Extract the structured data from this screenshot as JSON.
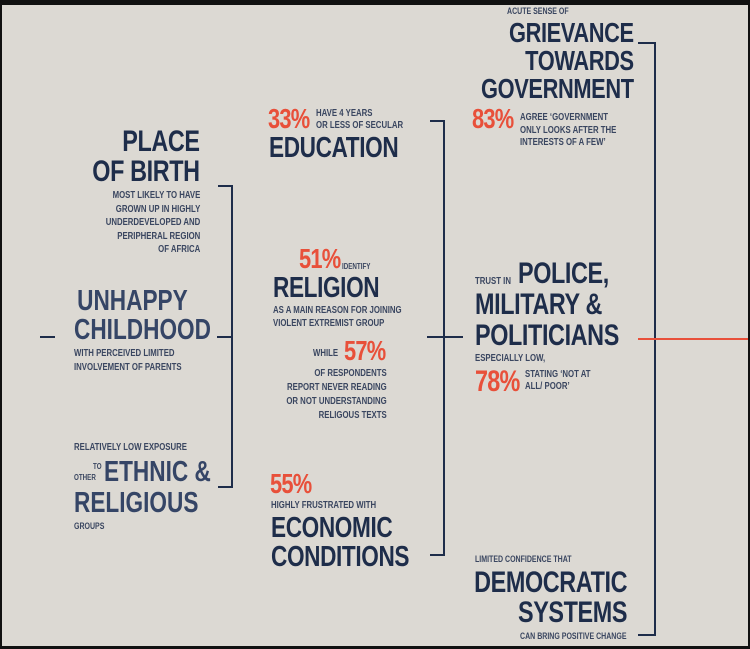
{
  "colors": {
    "background": "#dcd9d3",
    "navy": "#1e2d4a",
    "accent": "#e8503a"
  },
  "place_of_birth": {
    "title": [
      "PLACE",
      "OF BIRTH"
    ],
    "desc": [
      "MOST LIKELY TO HAVE",
      "GROWN UP IN HIGHLY",
      "UNDERDEVELOPED AND",
      "PERIPHERAL REGION",
      "OF AFRICA"
    ]
  },
  "unhappy_childhood": {
    "title": [
      "UNHAPPY",
      "CHILDHOOD"
    ],
    "desc": [
      "WITH PERCEIVED LIMITED",
      "INVOLVEMENT OF PARENTS"
    ]
  },
  "ethnic": {
    "intro": "RELATIVELY LOW EXPOSURE",
    "to": "TO",
    "other": "OTHER",
    "title": [
      "ETHNIC &",
      "RELIGIOUS"
    ],
    "suffix": "GROUPS"
  },
  "education": {
    "percent": "33%",
    "desc": [
      "HAVE 4 YEARS",
      "OR LESS OF SECULAR"
    ],
    "title": "EDUCATION"
  },
  "religion": {
    "percent": "51%",
    "identify": "IDENTIFY",
    "title": "RELIGION",
    "desc": [
      "AS A MAIN REASON FOR JOINING",
      "VIOLENT EXTREMIST GROUP"
    ],
    "while": "WHILE",
    "percent2": "57%",
    "desc2": [
      "OF RESPONDENTS",
      "REPORT NEVER READING",
      "OR NOT UNDERSTANDING",
      "RELIGOUS TEXTS"
    ]
  },
  "economic": {
    "percent": "55%",
    "desc": "HIGHLY FRUSTRATED WITH",
    "title": [
      "ECONOMIC",
      "CONDITIONS"
    ]
  },
  "grievance": {
    "intro": "ACUTE SENSE OF",
    "title": [
      "GRIEVANCE",
      "TOWARDS",
      "GOVERNMENT"
    ],
    "percent": "83%",
    "desc": [
      "AGREE ‘GOVERNMENT",
      "ONLY LOOKS AFTER THE",
      "INTERESTS OF A FEW’"
    ]
  },
  "trust": {
    "intro": "TRUST IN",
    "title": [
      "POLICE,",
      "MILITARY &",
      "POLITICIANS"
    ],
    "note": "ESPECIALLY LOW,",
    "percent": "78%",
    "desc": [
      "STATING ‘NOT AT",
      "ALL/ POOR’"
    ]
  },
  "democratic": {
    "intro": "LIMITED CONFIDENCE THAT",
    "title": [
      "DEMOCRATIC",
      "SYSTEMS"
    ],
    "suffix": "CAN BRING POSITIVE CHANGE"
  }
}
